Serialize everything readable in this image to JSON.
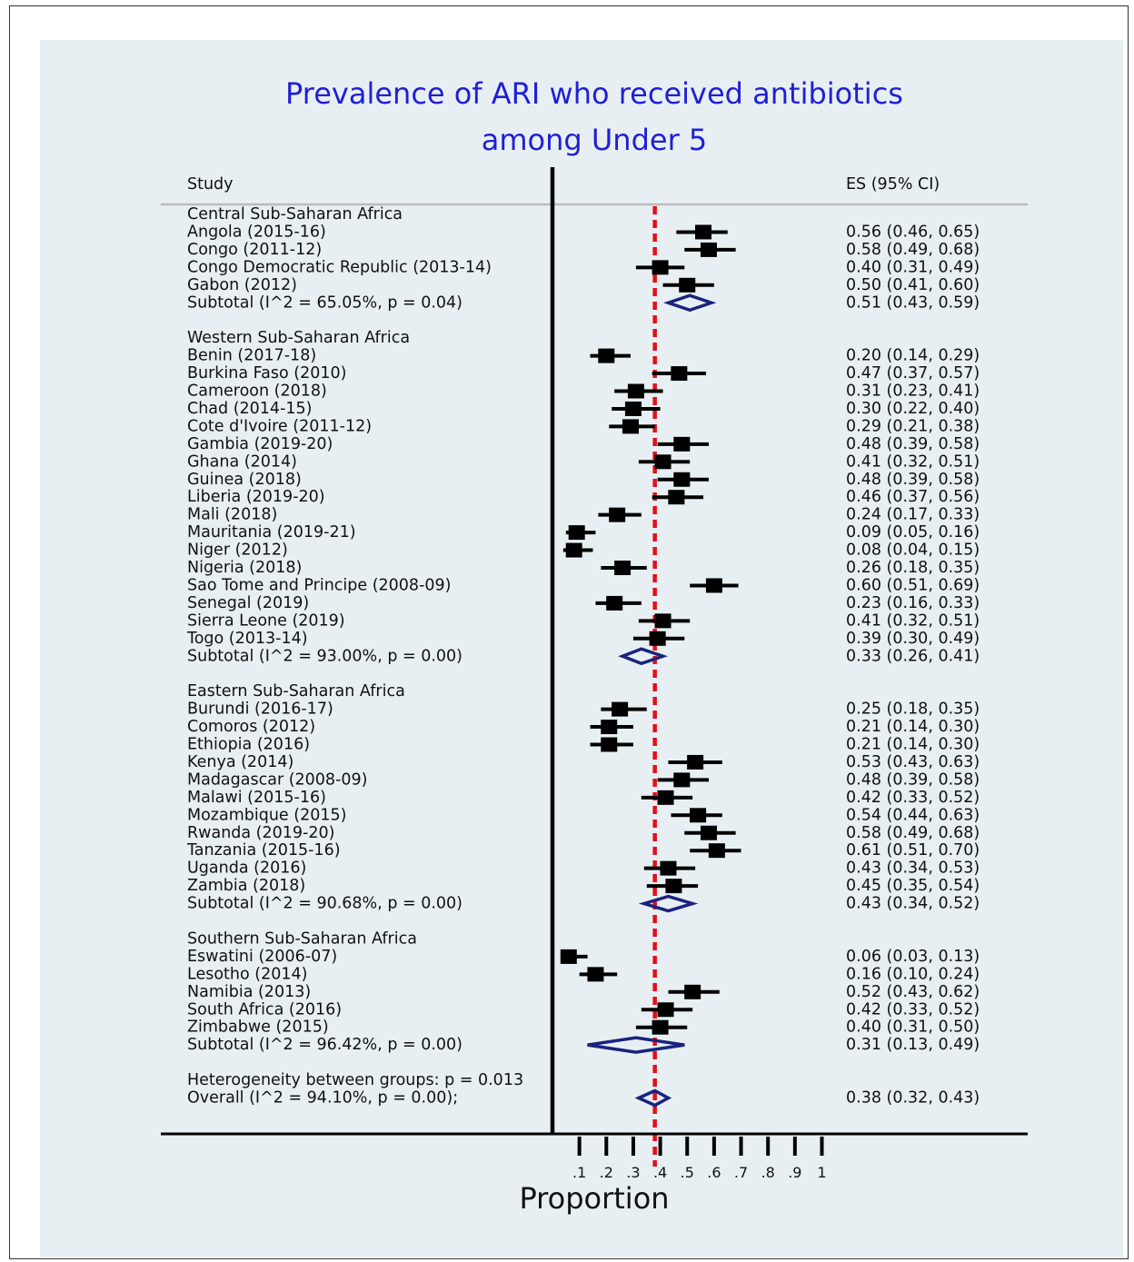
{
  "chart_data": {
    "type": "forest",
    "title_lines": [
      "Prevalence of ARI who received antibiotics",
      "among Under 5"
    ],
    "col_study": "Study",
    "col_es": "ES (95% CI)",
    "xlabel": "Proportion",
    "xticks": [
      0.1,
      0.2,
      0.3,
      0.4,
      0.5,
      0.6,
      0.7,
      0.8,
      0.9,
      1
    ],
    "xtick_labels": [
      ".1",
      ".2",
      ".3",
      ".4",
      ".5",
      ".6",
      ".7",
      ".8",
      ".9",
      "1"
    ],
    "overall_line": 0.38,
    "groups": [
      {
        "name": "Central Sub-Saharan Africa",
        "studies": [
          {
            "label": "Angola (2015-16)",
            "es": 0.56,
            "lo": 0.46,
            "hi": 0.65,
            "ci_text": "0.56 (0.46, 0.65)"
          },
          {
            "label": "Congo (2011-12)",
            "es": 0.58,
            "lo": 0.49,
            "hi": 0.68,
            "ci_text": "0.58 (0.49, 0.68)"
          },
          {
            "label": "Congo Democratic Republic (2013-14)",
            "es": 0.4,
            "lo": 0.31,
            "hi": 0.49,
            "ci_text": "0.40 (0.31, 0.49)"
          },
          {
            "label": "Gabon (2012)",
            "es": 0.5,
            "lo": 0.41,
            "hi": 0.6,
            "ci_text": "0.50 (0.41, 0.60)"
          }
        ],
        "subtotal": {
          "label": "Subtotal  (I^2 = 65.05%, p = 0.04)",
          "es": 0.51,
          "lo": 0.43,
          "hi": 0.59,
          "ci_text": "0.51 (0.43, 0.59)"
        }
      },
      {
        "name": "Western Sub-Saharan Africa",
        "studies": [
          {
            "label": "Benin (2017-18)",
            "es": 0.2,
            "lo": 0.14,
            "hi": 0.29,
            "ci_text": "0.20 (0.14, 0.29)"
          },
          {
            "label": "Burkina Faso (2010)",
            "es": 0.47,
            "lo": 0.37,
            "hi": 0.57,
            "ci_text": "0.47 (0.37, 0.57)"
          },
          {
            "label": "Cameroon (2018)",
            "es": 0.31,
            "lo": 0.23,
            "hi": 0.41,
            "ci_text": "0.31 (0.23, 0.41)"
          },
          {
            "label": "Chad (2014-15)",
            "es": 0.3,
            "lo": 0.22,
            "hi": 0.4,
            "ci_text": "0.30 (0.22, 0.40)"
          },
          {
            "label": "Cote d'Ivoire (2011-12)",
            "es": 0.29,
            "lo": 0.21,
            "hi": 0.38,
            "ci_text": "0.29 (0.21, 0.38)"
          },
          {
            "label": "Gambia (2019-20)",
            "es": 0.48,
            "lo": 0.39,
            "hi": 0.58,
            "ci_text": "0.48 (0.39, 0.58)"
          },
          {
            "label": "Ghana (2014)",
            "es": 0.41,
            "lo": 0.32,
            "hi": 0.51,
            "ci_text": "0.41 (0.32, 0.51)"
          },
          {
            "label": "Guinea (2018)",
            "es": 0.48,
            "lo": 0.39,
            "hi": 0.58,
            "ci_text": "0.48 (0.39, 0.58)"
          },
          {
            "label": "Liberia (2019-20)",
            "es": 0.46,
            "lo": 0.37,
            "hi": 0.56,
            "ci_text": "0.46 (0.37, 0.56)"
          },
          {
            "label": "Mali (2018)",
            "es": 0.24,
            "lo": 0.17,
            "hi": 0.33,
            "ci_text": "0.24 (0.17, 0.33)"
          },
          {
            "label": "Mauritania (2019-21)",
            "es": 0.09,
            "lo": 0.05,
            "hi": 0.16,
            "ci_text": "0.09 (0.05, 0.16)"
          },
          {
            "label": "Niger (2012)",
            "es": 0.08,
            "lo": 0.04,
            "hi": 0.15,
            "ci_text": "0.08 (0.04, 0.15)"
          },
          {
            "label": "Nigeria (2018)",
            "es": 0.26,
            "lo": 0.18,
            "hi": 0.35,
            "ci_text": "0.26 (0.18, 0.35)"
          },
          {
            "label": "Sao Tome and Principe (2008-09)",
            "es": 0.6,
            "lo": 0.51,
            "hi": 0.69,
            "ci_text": "0.60 (0.51, 0.69)"
          },
          {
            "label": "Senegal (2019)",
            "es": 0.23,
            "lo": 0.16,
            "hi": 0.33,
            "ci_text": "0.23 (0.16, 0.33)"
          },
          {
            "label": "Sierra Leone (2019)",
            "es": 0.41,
            "lo": 0.32,
            "hi": 0.51,
            "ci_text": "0.41 (0.32, 0.51)"
          },
          {
            "label": "Togo (2013-14)",
            "es": 0.39,
            "lo": 0.3,
            "hi": 0.49,
            "ci_text": "0.39 (0.30, 0.49)"
          }
        ],
        "subtotal": {
          "label": "Subtotal  (I^2 = 93.00%, p = 0.00)",
          "es": 0.33,
          "lo": 0.26,
          "hi": 0.41,
          "ci_text": "0.33 (0.26, 0.41)"
        }
      },
      {
        "name": "Eastern Sub-Saharan Africa",
        "studies": [
          {
            "label": "Burundi (2016-17)",
            "es": 0.25,
            "lo": 0.18,
            "hi": 0.35,
            "ci_text": "0.25 (0.18, 0.35)"
          },
          {
            "label": "Comoros (2012)",
            "es": 0.21,
            "lo": 0.14,
            "hi": 0.3,
            "ci_text": "0.21 (0.14, 0.30)"
          },
          {
            "label": "Ethiopia (2016)",
            "es": 0.21,
            "lo": 0.14,
            "hi": 0.3,
            "ci_text": "0.21 (0.14, 0.30)"
          },
          {
            "label": "Kenya (2014)",
            "es": 0.53,
            "lo": 0.43,
            "hi": 0.63,
            "ci_text": "0.53 (0.43, 0.63)"
          },
          {
            "label": "Madagascar (2008-09)",
            "es": 0.48,
            "lo": 0.39,
            "hi": 0.58,
            "ci_text": "0.48 (0.39, 0.58)"
          },
          {
            "label": "Malawi (2015-16)",
            "es": 0.42,
            "lo": 0.33,
            "hi": 0.52,
            "ci_text": "0.42 (0.33, 0.52)"
          },
          {
            "label": "Mozambique (2015)",
            "es": 0.54,
            "lo": 0.44,
            "hi": 0.63,
            "ci_text": "0.54 (0.44, 0.63)"
          },
          {
            "label": "Rwanda (2019-20)",
            "es": 0.58,
            "lo": 0.49,
            "hi": 0.68,
            "ci_text": "0.58 (0.49, 0.68)"
          },
          {
            "label": "Tanzania (2015-16)",
            "es": 0.61,
            "lo": 0.51,
            "hi": 0.7,
            "ci_text": "0.61 (0.51, 0.70)"
          },
          {
            "label": "Uganda (2016)",
            "es": 0.43,
            "lo": 0.34,
            "hi": 0.53,
            "ci_text": "0.43 (0.34, 0.53)"
          },
          {
            "label": "Zambia (2018)",
            "es": 0.45,
            "lo": 0.35,
            "hi": 0.54,
            "ci_text": "0.45 (0.35, 0.54)"
          }
        ],
        "subtotal": {
          "label": "Subtotal  (I^2 = 90.68%, p = 0.00)",
          "es": 0.43,
          "lo": 0.34,
          "hi": 0.52,
          "ci_text": "0.43 (0.34, 0.52)"
        }
      },
      {
        "name": "Southern Sub-Saharan Africa",
        "studies": [
          {
            "label": "Eswatini (2006-07)",
            "es": 0.06,
            "lo": 0.03,
            "hi": 0.13,
            "ci_text": "0.06 (0.03, 0.13)"
          },
          {
            "label": "Lesotho (2014)",
            "es": 0.16,
            "lo": 0.1,
            "hi": 0.24,
            "ci_text": "0.16 (0.10, 0.24)"
          },
          {
            "label": "Namibia (2013)",
            "es": 0.52,
            "lo": 0.43,
            "hi": 0.62,
            "ci_text": "0.52 (0.43, 0.62)"
          },
          {
            "label": "South Africa (2016)",
            "es": 0.42,
            "lo": 0.33,
            "hi": 0.52,
            "ci_text": "0.42 (0.33, 0.52)"
          },
          {
            "label": "Zimbabwe (2015)",
            "es": 0.4,
            "lo": 0.31,
            "hi": 0.5,
            "ci_text": "0.40 (0.31, 0.50)"
          }
        ],
        "subtotal": {
          "label": "Subtotal  (I^2 = 96.42%, p = 0.00)",
          "es": 0.31,
          "lo": 0.13,
          "hi": 0.49,
          "ci_text": "0.31 (0.13, 0.49)"
        }
      }
    ],
    "heterogeneity_text": "Heterogeneity between groups: p = 0.013",
    "overall": {
      "label": "Overall  (I^2 = 94.10%, p = 0.00);",
      "es": 0.38,
      "lo": 0.32,
      "hi": 0.43,
      "ci_text": "0.38 (0.32, 0.43)"
    },
    "colors": {
      "title": "#1f1fd6",
      "diamond": "#1a237e",
      "reference_line": "#e0101a",
      "marker": "#000000",
      "background": "#e8eff2",
      "header_rule": "#bbbbbb"
    }
  }
}
